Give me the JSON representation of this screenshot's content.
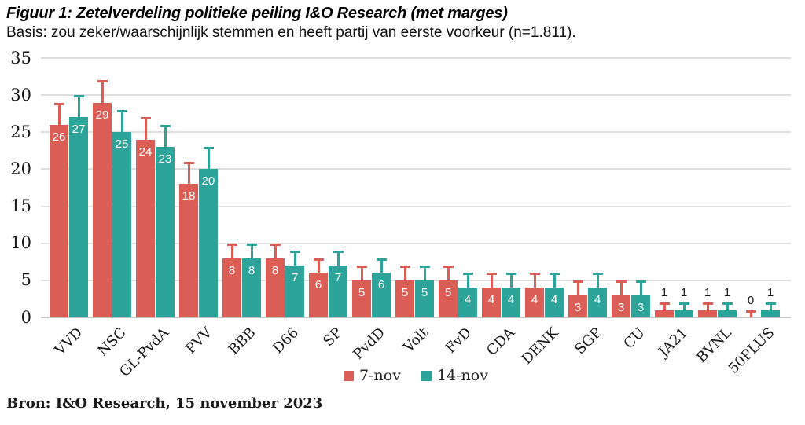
{
  "title": "Figuur 1: Zetelverdeling politieke peiling I&O Research (met marges)",
  "subtitle": "Basis: zou zeker/waarschijnlijk stemmen en heeft partij van eerste voorkeur (n=1.811).",
  "source": "Bron: I&O Research, 15 november 2023",
  "colors": {
    "series_7nov": "#DB5E56",
    "series_14nov": "#2CA49A",
    "gridline": "#DEDEDE",
    "axis_baseline": "#C6C6C6",
    "text": "#1A1A1A",
    "bar_label_inside": "#FFFFFF"
  },
  "chart_data": {
    "type": "bar",
    "title": "Figuur 1: Zetelverdeling politieke peiling I&O Research (met marges)",
    "subtitle": "Basis: zou zeker/waarschijnlijk stemmen en heeft partij van eerste voorkeur (n=1.811).",
    "categories": [
      "VVD",
      "NSC",
      "GL-PvdA",
      "PVV",
      "BBB",
      "D66",
      "SP",
      "PvdD",
      "Volt",
      "FvD",
      "CDA",
      "DENK",
      "SGP",
      "CU",
      "JA21",
      "BVNL",
      "50PLUS"
    ],
    "series": [
      {
        "name": "7-nov",
        "color": "#DB5E56",
        "values": [
          26,
          29,
          24,
          18,
          8,
          8,
          6,
          5,
          5,
          5,
          4,
          4,
          3,
          3,
          1,
          1,
          0
        ],
        "upper_margin": [
          29,
          32,
          27,
          21,
          10,
          10,
          8,
          7,
          7,
          7,
          6,
          6,
          5,
          5,
          2,
          2,
          1
        ]
      },
      {
        "name": "14-nov",
        "color": "#2CA49A",
        "values": [
          27,
          25,
          23,
          20,
          8,
          7,
          7,
          6,
          5,
          4,
          4,
          4,
          4,
          3,
          1,
          1,
          1
        ],
        "upper_margin": [
          30,
          28,
          26,
          23,
          10,
          9,
          9,
          8,
          7,
          6,
          6,
          6,
          6,
          5,
          2,
          2,
          2
        ]
      }
    ],
    "xlabel": "",
    "ylabel": "",
    "yticks": [
      0,
      5,
      10,
      15,
      20,
      25,
      30,
      35
    ],
    "ylim": [
      0,
      35
    ],
    "grid": true,
    "error_bars": "upper whisker with cap, same color as bar",
    "legend_position": "bottom-center"
  }
}
